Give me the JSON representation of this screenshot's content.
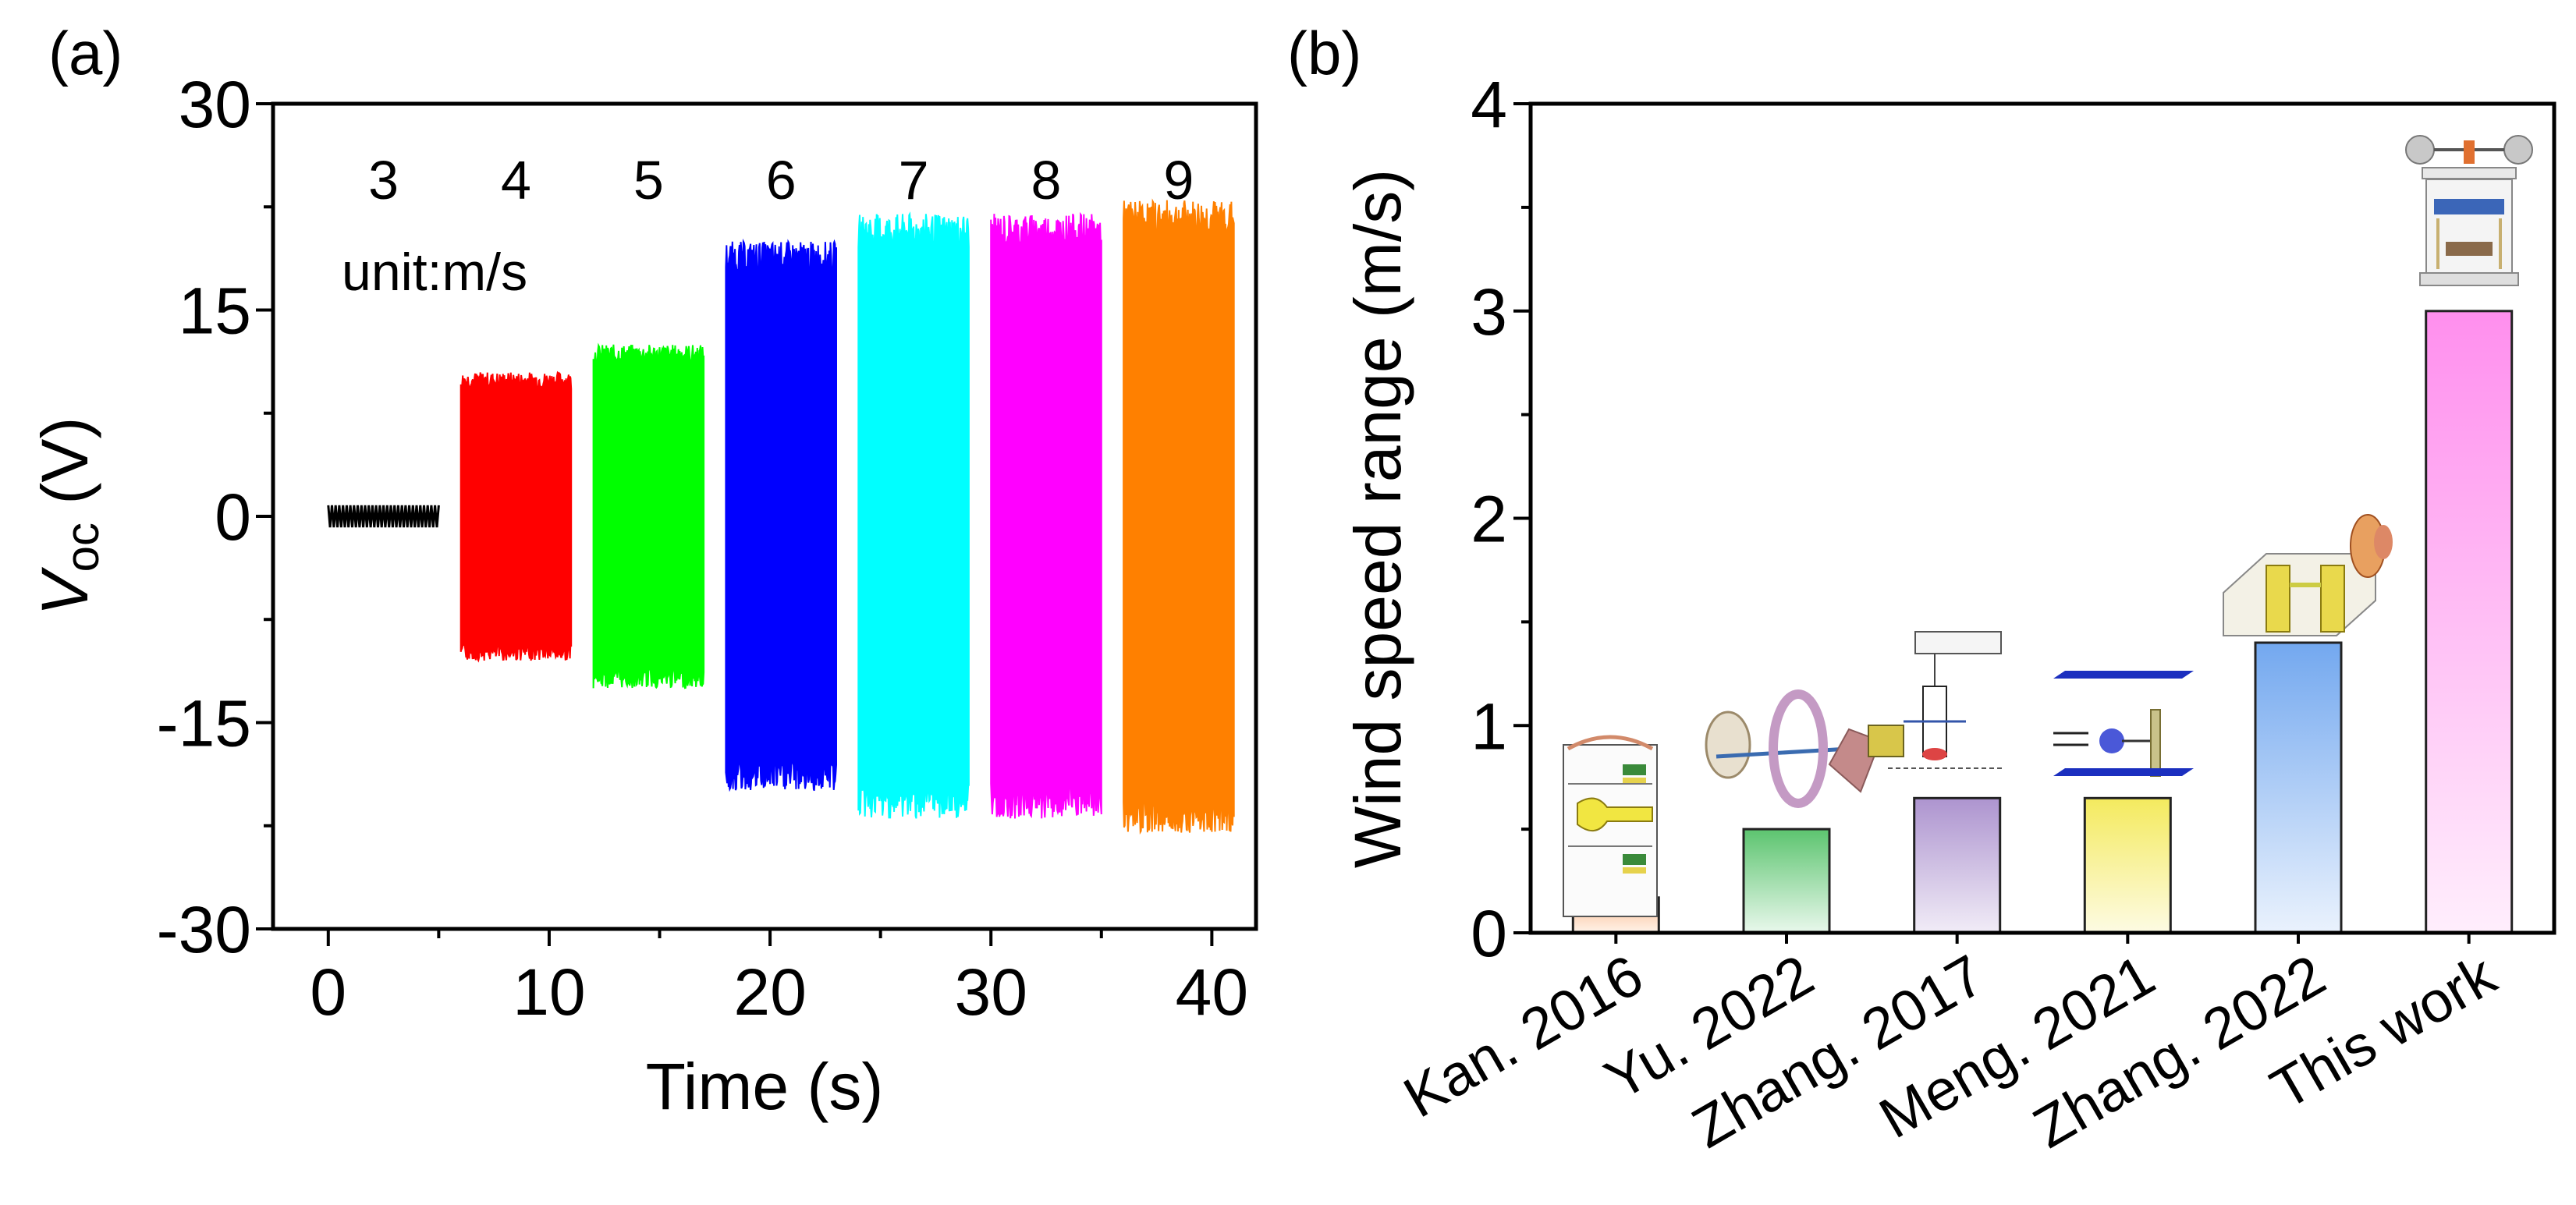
{
  "chart_data": [
    {
      "type": "line",
      "panel_label": "(a)",
      "title": "",
      "xlabel": "Time (s)",
      "ylabel_main": "V",
      "ylabel_sub": "oc",
      "ylabel_unit": " (V)",
      "xlim": [
        -2.5,
        42
      ],
      "ylim": [
        -30,
        30
      ],
      "xticks": [
        0,
        10,
        20,
        30,
        40
      ],
      "yticks": [
        30,
        15,
        0,
        -15,
        -30
      ],
      "ytick_labels": [
        "30",
        "15",
        "0",
        "-15",
        "-30"
      ],
      "unit_annotation": "unit:m/s",
      "series": [
        {
          "name": "3",
          "x_start": 0.0,
          "x_end": 5.0,
          "min": -0.8,
          "max": 0.8,
          "color": "#000000"
        },
        {
          "name": "4",
          "x_start": 6.0,
          "x_end": 11.0,
          "min": -10.5,
          "max": 10.5,
          "color": "#ff0000"
        },
        {
          "name": "5",
          "x_start": 12.0,
          "x_end": 17.0,
          "min": -12.5,
          "max": 12.5,
          "color": "#00ff00"
        },
        {
          "name": "6",
          "x_start": 18.0,
          "x_end": 23.0,
          "min": -20.0,
          "max": 20.0,
          "color": "#0000ff"
        },
        {
          "name": "7",
          "x_start": 24.0,
          "x_end": 29.0,
          "min": -22.0,
          "max": 22.0,
          "color": "#00ffff"
        },
        {
          "name": "8",
          "x_start": 30.0,
          "x_end": 35.0,
          "min": -22.0,
          "max": 22.0,
          "color": "#ff00ff"
        },
        {
          "name": "9",
          "x_start": 36.0,
          "x_end": 41.0,
          "min": -23.0,
          "max": 23.0,
          "color": "#ff8000"
        }
      ]
    },
    {
      "type": "bar",
      "panel_label": "(b)",
      "title": "",
      "xlabel": "",
      "ylabel": "Wind speed range (m/s)",
      "ylim": [
        0,
        4
      ],
      "yticks": [
        0,
        1,
        2,
        3,
        4
      ],
      "categories": [
        "Kan. 2016",
        "Yu. 2022",
        "Zhang. 2017",
        "Meng. 2021",
        "Zhang. 2022",
        "This work"
      ],
      "values": [
        0.17,
        0.5,
        0.65,
        0.65,
        1.4,
        3.0
      ],
      "colors": [
        "#f9b98c",
        "#6fcf7f",
        "#b9a3d3",
        "#f6ee74",
        "#7fb0ef",
        "#ff9cf0"
      ],
      "illustrations": [
        "turbine-device-illustration",
        "wheel-device-illustration",
        "pendulum-device-illustration",
        "sphere-device-illustration",
        "piezo-box-illustration",
        "anemometer-device-photo"
      ]
    }
  ]
}
